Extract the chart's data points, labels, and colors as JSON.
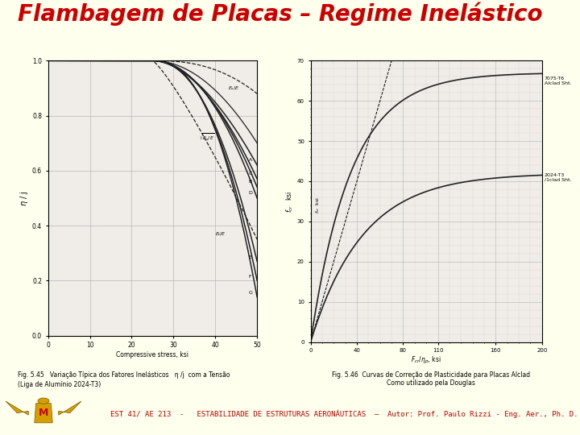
{
  "title": "Flambagem de Placas – Regime Inelástico",
  "title_color": "#cc0000",
  "title_fontsize": 20,
  "title_style": "italic",
  "title_weight": "bold",
  "bg_color": "#ffffee",
  "header_bar_color": "#2277dd",
  "footer_bar_color": "#2277dd",
  "footer_text": "EST 41/ AE 213  -   ESTABILIDADE DE ESTRUTURAS AERONÁUTICAS  –  Autor: Prof. Paulo Rizzi - Eng. Aer., Ph. D.",
  "footer_text_color": "#cc0000",
  "footer_fontsize": 6.5,
  "left_image_caption1": "Fig. 5.45   Variação Típica dos Fatores Inelásticos   η /j  com a Tensão",
  "left_image_caption2": "(Liga de Alumínio 2024-T3)",
  "right_image_caption1": "Fig. 5.46  Curvas de Correção de Plasticidade para Placas Alclad",
  "right_image_caption2": "Como utilizado pela Douglas",
  "chart_bg": "#e8e4dc",
  "chart_paper": "#f0ede8",
  "grid_color": "#aaaaaa",
  "curve_color": "#222222",
  "logo_gold": "#d4a000",
  "logo_red": "#cc0000"
}
